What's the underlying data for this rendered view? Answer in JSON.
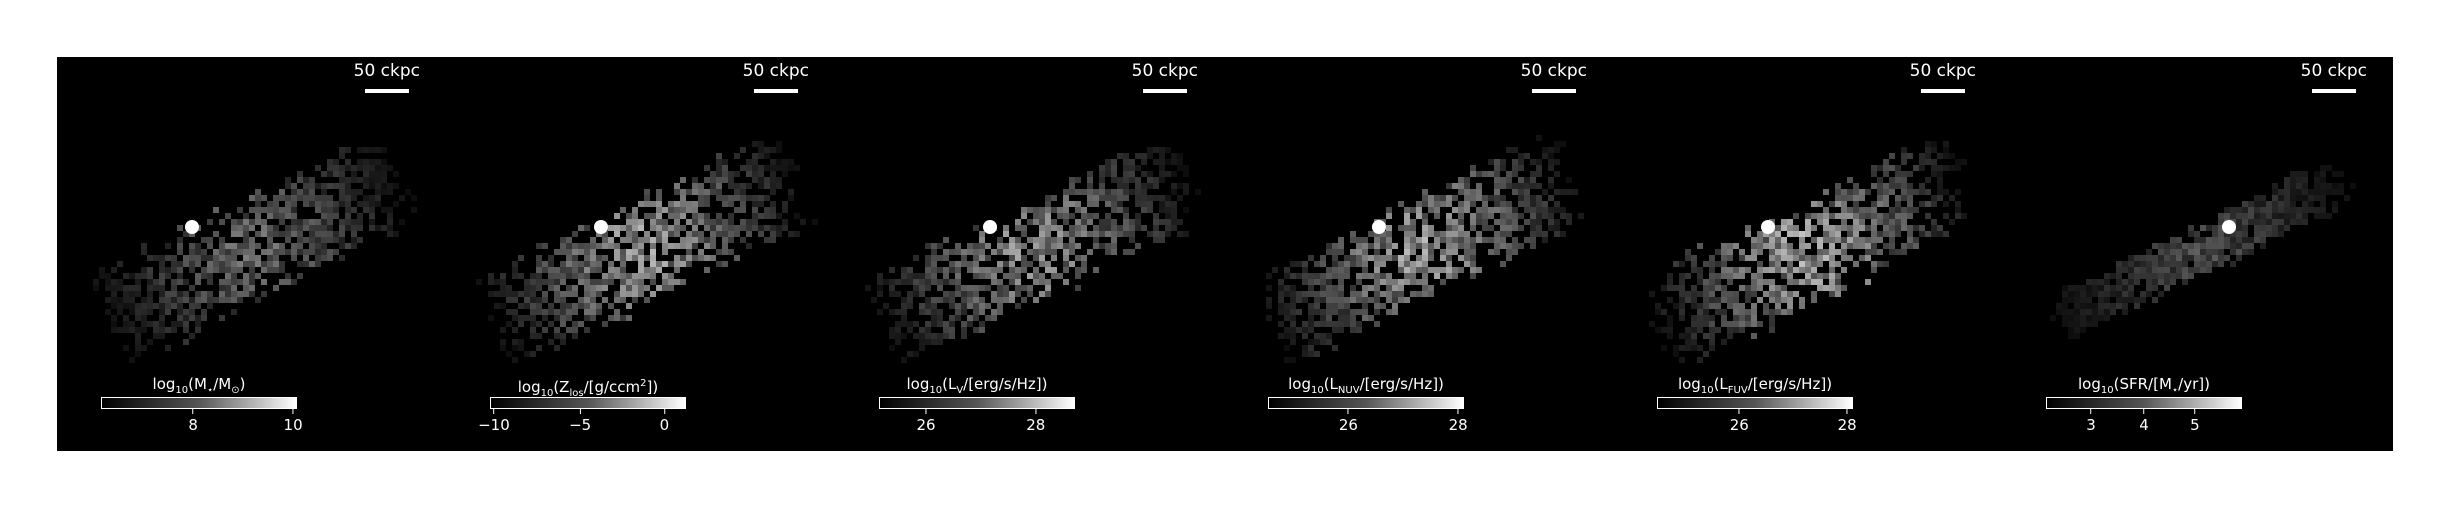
{
  "scale_label": "50 ckpc",
  "panels": [
    {
      "id": "mass",
      "label_pre": "log",
      "label_sub": "10",
      "label_mid": "(M",
      "label_sub2": "⋆",
      "label_post": "/M",
      "label_sub3": "⊙",
      "label_end": ")",
      "ticks": [
        {
          "text": "8",
          "frac": 0.47
        },
        {
          "text": "10",
          "frac": 0.98
        }
      ],
      "brightness": 0.55
    },
    {
      "id": "metal",
      "label_pre": "log",
      "label_sub": "10",
      "label_mid": "(Z",
      "label_sub2": "los",
      "label_post": "/[g/ccm",
      "label_sup": "2",
      "label_end": "])",
      "ticks": [
        {
          "text": "−10",
          "frac": 0.02
        },
        {
          "text": "−5",
          "frac": 0.46
        },
        {
          "text": "0",
          "frac": 0.89
        }
      ],
      "brightness": 0.8
    },
    {
      "id": "lv",
      "label_pre": "log",
      "label_sub": "10",
      "label_mid": "(L",
      "label_sub2": "V",
      "label_post": "/[erg/s/Hz])",
      "ticks": [
        {
          "text": "26",
          "frac": 0.24
        },
        {
          "text": "28",
          "frac": 0.8
        }
      ],
      "brightness": 0.75
    },
    {
      "id": "lnuv",
      "label_pre": "log",
      "label_sub": "10",
      "label_mid": "(L",
      "label_sub2": "NUV",
      "label_post": "/[erg/s/Hz])",
      "ticks": [
        {
          "text": "26",
          "frac": 0.41
        },
        {
          "text": "28",
          "frac": 0.97
        }
      ],
      "brightness": 0.8
    },
    {
      "id": "lfuv",
      "label_pre": "log",
      "label_sub": "10",
      "label_mid": "(L",
      "label_sub2": "FUV",
      "label_post": "/[erg/s/Hz])",
      "ticks": [
        {
          "text": "26",
          "frac": 0.42
        },
        {
          "text": "28",
          "frac": 0.97
        }
      ],
      "brightness": 0.85
    },
    {
      "id": "sfr",
      "label_pre": "log",
      "label_sub": "10",
      "label_mid": "(SFR/[M",
      "label_sub2": "⋆",
      "label_post": "/yr])",
      "ticks": [
        {
          "text": "3",
          "frac": 0.23
        },
        {
          "text": "4",
          "frac": 0.5
        },
        {
          "text": "5",
          "frac": 0.76
        }
      ],
      "brightness": 0.4
    }
  ]
}
